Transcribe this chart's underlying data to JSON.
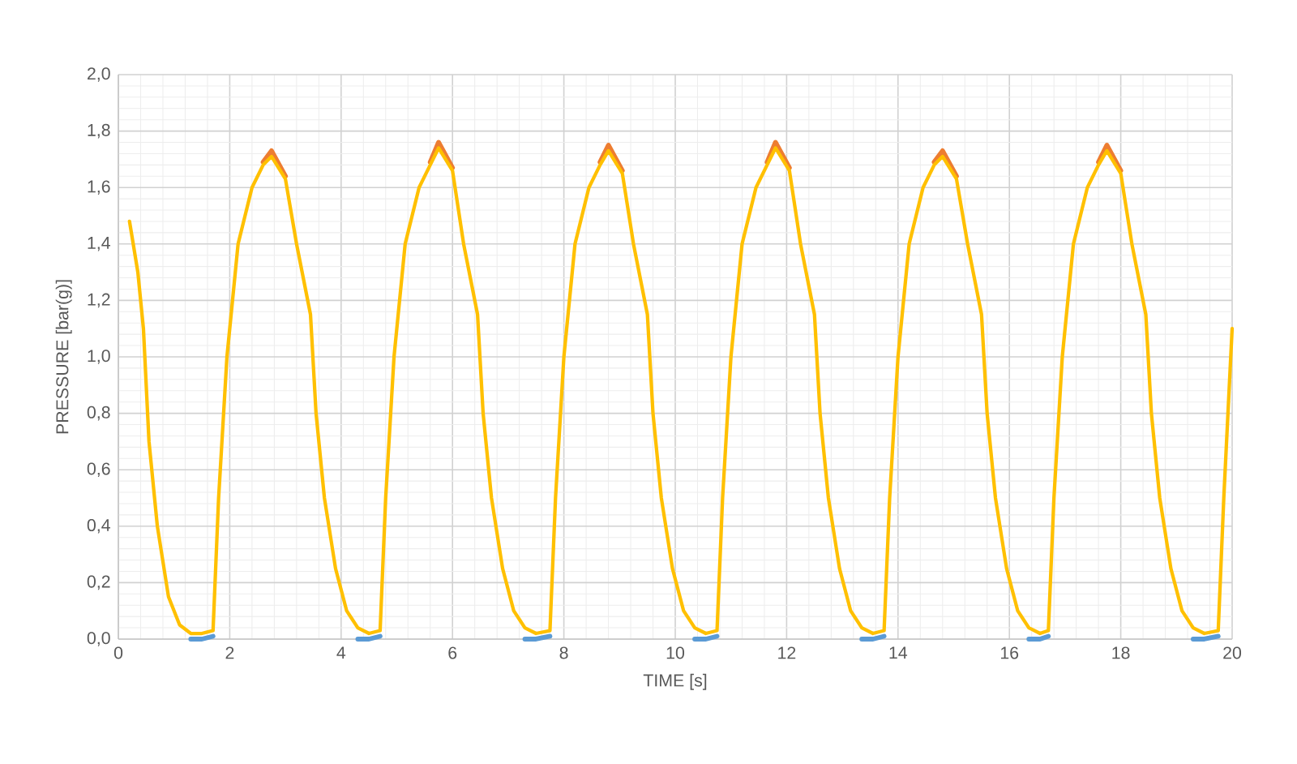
{
  "chart_data": {
    "type": "line",
    "xlabel": "TIME  [s]",
    "ylabel": "PRESSURE  [bar(g)]",
    "x": [
      0.2,
      0.35,
      0.45,
      0.55,
      0.7,
      0.9,
      1.1,
      1.3,
      1.5,
      1.7,
      1.8,
      1.95,
      2.15,
      2.4,
      2.6,
      2.75,
      3.0,
      3.2,
      3.35,
      3.45,
      3.55,
      3.7,
      3.9,
      4.1,
      4.3,
      4.5,
      4.7,
      4.8,
      4.95,
      5.15,
      5.4,
      5.6,
      5.75,
      6.0,
      6.2,
      6.35,
      6.45,
      6.55,
      6.7,
      6.9,
      7.1,
      7.3,
      7.5,
      7.75,
      7.85,
      8.0,
      8.2,
      8.45,
      8.65,
      8.8,
      9.05,
      9.25,
      9.4,
      9.5,
      9.6,
      9.75,
      9.95,
      10.15,
      10.35,
      10.55,
      10.75,
      10.85,
      11.0,
      11.2,
      11.45,
      11.65,
      11.8,
      12.05,
      12.25,
      12.4,
      12.5,
      12.6,
      12.75,
      12.95,
      13.15,
      13.35,
      13.55,
      13.75,
      13.85,
      14.0,
      14.2,
      14.45,
      14.65,
      14.8,
      15.05,
      15.25,
      15.4,
      15.5,
      15.6,
      15.75,
      15.95,
      16.15,
      16.35,
      16.55,
      16.7,
      16.8,
      16.95,
      17.15,
      17.4,
      17.6,
      17.75,
      18.0,
      18.2,
      18.35,
      18.45,
      18.55,
      18.7,
      18.9,
      19.1,
      19.3,
      19.5,
      19.75,
      19.85,
      20.0
    ],
    "series": [
      {
        "color": "#5b9bd5",
        "values": [
          null,
          null,
          null,
          null,
          null,
          null,
          null,
          0.0,
          0.0,
          0.01,
          null,
          null,
          null,
          null,
          null,
          null,
          null,
          null,
          null,
          null,
          null,
          null,
          null,
          null,
          0.0,
          0.0,
          0.01,
          null,
          null,
          null,
          null,
          null,
          null,
          null,
          null,
          null,
          null,
          null,
          null,
          null,
          null,
          0.0,
          0.0,
          0.01,
          null,
          null,
          null,
          null,
          null,
          null,
          null,
          null,
          null,
          null,
          null,
          null,
          null,
          null,
          0.0,
          0.0,
          0.01,
          null,
          null,
          null,
          null,
          null,
          null,
          null,
          null,
          null,
          null,
          null,
          null,
          null,
          null,
          0.0,
          0.0,
          0.01,
          null,
          null,
          null,
          null,
          null,
          null,
          null,
          null,
          null,
          null,
          null,
          null,
          null,
          null,
          0.0,
          0.0,
          0.01,
          null,
          null,
          null,
          null,
          null,
          null,
          null,
          null,
          null,
          null,
          null,
          null,
          null,
          null,
          0.0,
          0.0,
          0.01,
          null,
          null
        ]
      },
      {
        "color": "#ed7d31",
        "values": [
          null,
          null,
          null,
          null,
          null,
          null,
          null,
          null,
          null,
          null,
          null,
          null,
          null,
          null,
          1.69,
          1.73,
          1.64,
          null,
          null,
          null,
          null,
          null,
          null,
          null,
          null,
          null,
          null,
          null,
          null,
          null,
          null,
          1.69,
          1.76,
          1.67,
          null,
          null,
          null,
          null,
          null,
          null,
          null,
          null,
          null,
          null,
          null,
          null,
          null,
          null,
          1.69,
          1.75,
          1.66,
          null,
          null,
          null,
          null,
          null,
          null,
          null,
          null,
          null,
          null,
          null,
          null,
          null,
          null,
          1.69,
          1.76,
          1.67,
          null,
          null,
          null,
          null,
          null,
          null,
          null,
          null,
          null,
          null,
          null,
          null,
          null,
          null,
          1.69,
          1.73,
          1.64,
          null,
          null,
          null,
          null,
          null,
          null,
          null,
          null,
          null,
          null,
          null,
          null,
          null,
          null,
          1.69,
          1.75,
          1.66,
          null,
          null,
          null,
          null,
          null,
          null,
          null,
          null,
          null,
          null,
          null,
          null
        ]
      },
      {
        "color": "#ffc000",
        "values": [
          1.48,
          1.3,
          1.1,
          0.7,
          0.4,
          0.15,
          0.05,
          0.02,
          0.02,
          0.03,
          0.5,
          1.0,
          1.4,
          1.6,
          1.68,
          1.71,
          1.63,
          1.4,
          1.25,
          1.15,
          0.8,
          0.5,
          0.25,
          0.1,
          0.04,
          0.02,
          0.03,
          0.5,
          1.0,
          1.4,
          1.6,
          1.68,
          1.74,
          1.66,
          1.4,
          1.25,
          1.15,
          0.8,
          0.5,
          0.25,
          0.1,
          0.04,
          0.02,
          0.03,
          0.5,
          1.0,
          1.4,
          1.6,
          1.68,
          1.73,
          1.65,
          1.4,
          1.25,
          1.15,
          0.8,
          0.5,
          0.25,
          0.1,
          0.04,
          0.02,
          0.03,
          0.5,
          1.0,
          1.4,
          1.6,
          1.68,
          1.74,
          1.66,
          1.4,
          1.25,
          1.15,
          0.8,
          0.5,
          0.25,
          0.1,
          0.04,
          0.02,
          0.03,
          0.5,
          1.0,
          1.4,
          1.6,
          1.68,
          1.71,
          1.63,
          1.4,
          1.25,
          1.15,
          0.8,
          0.5,
          0.25,
          0.1,
          0.04,
          0.02,
          0.03,
          0.5,
          1.0,
          1.4,
          1.6,
          1.68,
          1.73,
          1.65,
          1.4,
          1.25,
          1.15,
          0.8,
          0.5,
          0.25,
          0.1,
          0.04,
          0.02,
          0.03,
          0.5,
          1.1
        ]
      }
    ],
    "xlim": [
      0,
      20
    ],
    "xticks": [
      0,
      2,
      4,
      6,
      8,
      10,
      12,
      14,
      16,
      18,
      20
    ],
    "ylim": [
      0,
      2.0
    ],
    "yticks": [
      {
        "value": 0,
        "label": "0,0"
      },
      {
        "value": 0.2,
        "label": "0,2"
      },
      {
        "value": 0.4,
        "label": "0,4"
      },
      {
        "value": 0.6,
        "label": "0,6"
      },
      {
        "value": 0.8,
        "label": "0,8"
      },
      {
        "value": 1.0,
        "label": "1,0"
      },
      {
        "value": 1.2,
        "label": "1,2"
      },
      {
        "value": 1.4,
        "label": "1,4"
      },
      {
        "value": 1.6,
        "label": "1,6"
      },
      {
        "value": 1.8,
        "label": "1,8"
      },
      {
        "value": 2.0,
        "label": "2,0"
      }
    ],
    "grid": true,
    "marker": "none",
    "line_style": "solid"
  }
}
